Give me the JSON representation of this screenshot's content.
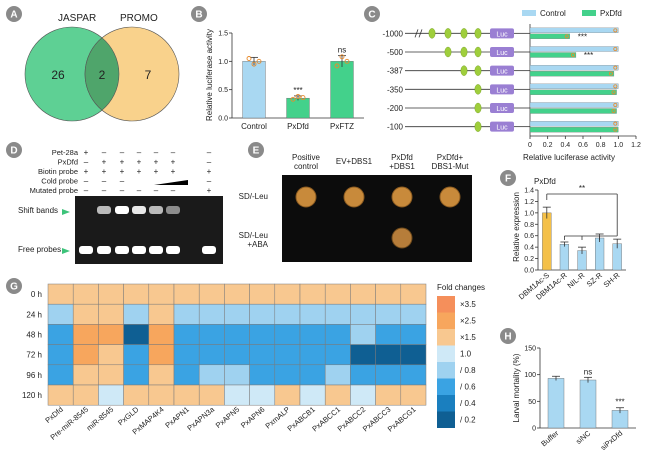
{
  "panels": [
    "A",
    "B",
    "C",
    "D",
    "E",
    "F",
    "G",
    "H"
  ],
  "venn": {
    "left_label": "JASPAR",
    "right_label": "PROMO",
    "left_only": "26",
    "overlap": "2",
    "right_only": "7",
    "colors": {
      "left": "#5ed094",
      "right": "#f9d28c",
      "overlap": "#4fa56b"
    }
  },
  "chart_b": {
    "type": "bar",
    "ylabel": "Relative luciferase activity",
    "categories": [
      "Control",
      "PxDfd",
      "PxFTZ"
    ],
    "values": [
      1.0,
      0.35,
      1.0
    ],
    "errors": [
      0.07,
      0.04,
      0.1
    ],
    "points": [
      [
        1.05,
        0.95,
        1.0
      ],
      [
        0.33,
        0.38,
        0.36
      ],
      [
        0.92,
        1.08,
        1.0
      ]
    ],
    "colors": [
      "#a9d8f2",
      "#43d18b",
      "#43d18b"
    ],
    "ylim": [
      0,
      1.5
    ],
    "yticks": [
      "0.0",
      "0.5",
      "1.0",
      "1.5"
    ],
    "annotations": [
      "",
      "***",
      "ns"
    ]
  },
  "chart_c": {
    "type": "bar",
    "xlabel": "Relative luciferase activity",
    "legend": [
      "Control",
      "PxDfd"
    ],
    "colors": {
      "Control": "#a9d8f2",
      "PxDfd": "#43d18b"
    },
    "constructs": [
      "-1000",
      "-500",
      "-387",
      "-350",
      "-200",
      "-100"
    ],
    "site_counts": [
      4,
      3,
      2,
      1,
      1,
      1
    ],
    "control": [
      1.0,
      1.0,
      1.0,
      1.0,
      1.0,
      1.0
    ],
    "pxdfd": [
      0.45,
      0.52,
      0.95,
      0.98,
      0.98,
      1.0
    ],
    "annotations": [
      "***",
      "***",
      "",
      "",
      "",
      ""
    ],
    "xlim": [
      0,
      1.2
    ],
    "xticks": [
      "0",
      "0.2",
      "0.4",
      "0.6",
      "0.8",
      "1.0",
      "1.2"
    ],
    "luc_label": "Luc"
  },
  "gel": {
    "rows": [
      {
        "label": "Pet-28a",
        "marks": [
          "+",
          "–",
          "–",
          "–",
          "–",
          "–",
          "–"
        ]
      },
      {
        "label": "PxDfd",
        "marks": [
          "–",
          "+",
          "+",
          "+",
          "+",
          "+",
          "–"
        ]
      },
      {
        "label": "Biotin probe",
        "marks": [
          "+",
          "+",
          "+",
          "+",
          "+",
          "+",
          "+"
        ]
      },
      {
        "label": "Cold probe",
        "marks": [
          "–",
          "–",
          "–",
          "",
          "",
          "",
          "–"
        ]
      },
      {
        "label": "Mutated probe",
        "marks": [
          "–",
          "–",
          "–",
          "–",
          "–",
          "–",
          "+"
        ]
      }
    ],
    "shift_label": "Shift bands",
    "free_label": "Free probes"
  },
  "yeast": {
    "columns": [
      "Positive control",
      "EV+DBS1",
      "PxDfd +DBS1",
      "PxDfd+ DBS1-Mut"
    ],
    "rows": [
      "SD/-Leu",
      "SD/-Leu +ABA"
    ]
  },
  "chart_f": {
    "type": "bar",
    "title": "PxDfd",
    "ylabel": "Relative expression",
    "categories": [
      "DBM1Ac-S",
      "DBM1Ac-R",
      "NIL-R",
      "SZ-R",
      "SH-R"
    ],
    "values": [
      1.0,
      0.45,
      0.34,
      0.56,
      0.46
    ],
    "errors": [
      0.1,
      0.04,
      0.06,
      0.07,
      0.08
    ],
    "colors": [
      "#f4c048",
      "#a9d8f2",
      "#a9d8f2",
      "#a9d8f2",
      "#a9d8f2"
    ],
    "ylim": [
      0,
      1.4
    ],
    "yticks": [
      "0.0",
      "0.2",
      "0.4",
      "0.6",
      "0.8",
      "1.0",
      "1.2",
      "1.4"
    ],
    "annotation": "**"
  },
  "chart_h": {
    "type": "bar",
    "ylabel": "Larval mortality (%)",
    "categories": [
      "Buffer",
      "siNC",
      "siPxDfd"
    ],
    "values": [
      93,
      90,
      33
    ],
    "errors": [
      4,
      5,
      5
    ],
    "colors": [
      "#a9d8f2",
      "#a9d8f2",
      "#a9d8f2"
    ],
    "ylim": [
      0,
      150
    ],
    "yticks": [
      "0",
      "50",
      "100",
      "150"
    ],
    "annotations": [
      "",
      "ns",
      "***"
    ]
  },
  "heatmap": {
    "type": "heatmap",
    "rows": [
      "0 h",
      "24 h",
      "48 h",
      "72 h",
      "96 h",
      "120 h"
    ],
    "columns": [
      "PxDfd",
      "Pre-miR-8545",
      "miR-8545",
      "PxGLD",
      "PxMAP4K4",
      "PxAPN1",
      "PxAPN3a",
      "PxAPN5",
      "PxAPN6",
      "PxmALP",
      "PxABCB1",
      "PxABCC1",
      "PxABCC2",
      "PxABCC3",
      "PxABCG1"
    ],
    "values": [
      [
        1,
        1,
        1,
        1,
        1,
        1,
        1,
        1,
        1,
        1,
        1,
        1,
        1,
        1,
        1
      ],
      [
        -1,
        1,
        1,
        -1,
        1,
        -1,
        -1,
        -1,
        -1,
        -1,
        -1,
        -1,
        -1,
        -1,
        -1
      ],
      [
        -2,
        2,
        2,
        -3,
        2,
        -2,
        -2,
        -2,
        -2,
        -2,
        -2,
        -2,
        -1,
        -2,
        -2
      ],
      [
        -2,
        2,
        1,
        -2,
        2,
        -2,
        -2,
        -2,
        -2,
        -2,
        -2,
        -2,
        -3,
        -3,
        -3
      ],
      [
        -2,
        1,
        1,
        -2,
        1,
        -2,
        -1,
        -1,
        -2,
        -2,
        -2,
        -1,
        -2,
        -2,
        -2
      ],
      [
        1,
        1,
        0,
        1,
        1,
        1,
        1,
        0,
        0,
        1,
        0,
        1,
        0,
        1,
        1
      ]
    ],
    "legend_title": "Fold changes",
    "legend_labels": [
      "×3.5",
      "×2.5",
      "×1.5",
      "1.0",
      "/ 0.8",
      "/ 0.6",
      "/ 0.4",
      "/ 0.2"
    ],
    "legend_colors": [
      "#f58f5b",
      "#f7a65d",
      "#f8c890",
      "#cfe9f7",
      "#9fd2f0",
      "#3aa3e3",
      "#1a7fbf",
      "#0f5f93"
    ],
    "cell_colors": {
      "3": "#f58f5b",
      "2": "#f7a65d",
      "1": "#f8c890",
      "0": "#cfe9f7",
      "-1": "#9fd2f0",
      "-2": "#3aa3e3",
      "-3": "#0f5f93"
    }
  }
}
